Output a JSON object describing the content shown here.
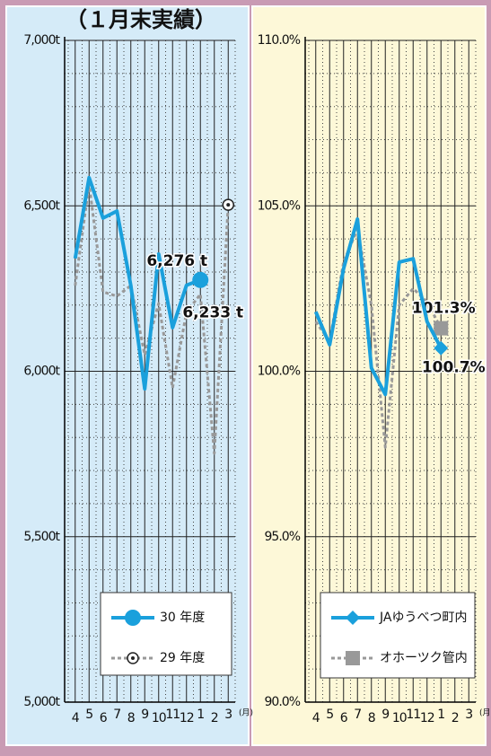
{
  "chart_data": [
    {
      "type": "line",
      "title": "（１月末実績）",
      "categories": [
        "4",
        "5",
        "6",
        "7",
        "8",
        "9",
        "10",
        "11",
        "12",
        "1",
        "2",
        "3"
      ],
      "x_unit": "(月)",
      "series": [
        {
          "name": "30 年度",
          "color": "#1aa0dc",
          "line": "solid",
          "marker": "circle",
          "values": [
            6341,
            6585,
            6463,
            6484,
            6259,
            5947,
            6354,
            6132,
            6260,
            6276,
            null,
            null
          ],
          "value_labels": [
            null,
            null,
            null,
            null,
            null,
            null,
            null,
            null,
            null,
            "6,276 t",
            null,
            null
          ]
        },
        {
          "name": "29 年度",
          "color": "#999999",
          "line": "dotted",
          "marker": "target",
          "values": [
            6259,
            6566,
            6240,
            6227,
            6259,
            6050,
            6205,
            5950,
            6178,
            6233,
            5752,
            6503
          ],
          "value_labels": [
            null,
            null,
            null,
            null,
            null,
            null,
            null,
            null,
            null,
            "6,233 t",
            null,
            null
          ]
        }
      ],
      "ylim": [
        5000,
        7000
      ],
      "yticks": [
        {
          "value": 5000,
          "label": "5,000t"
        },
        {
          "value": 5500,
          "label": "5,500t"
        },
        {
          "value": 6000,
          "label": "6,000t"
        },
        {
          "value": 6500,
          "label": "6,500t"
        },
        {
          "value": 7000,
          "label": "7,000t"
        }
      ],
      "grid": true,
      "legend": "lower right"
    },
    {
      "type": "line",
      "categories": [
        "4",
        "5",
        "6",
        "7",
        "8",
        "9",
        "10",
        "11",
        "12",
        "1",
        "2",
        "3"
      ],
      "x_unit": "(月)",
      "series": [
        {
          "name": "JAゆうべつ町内",
          "color": "#1aa0dc",
          "line": "solid",
          "marker": "diamond",
          "values": [
            101.8,
            100.8,
            103.1,
            104.6,
            100.1,
            99.3,
            103.3,
            103.4,
            101.5,
            100.7,
            null,
            null
          ],
          "value_labels": [
            null,
            null,
            null,
            null,
            null,
            null,
            null,
            null,
            null,
            "100.7%",
            null,
            null
          ]
        },
        {
          "name": "オホーツク管内",
          "color": "#999999",
          "line": "dotted",
          "marker": "square",
          "values": [
            101.5,
            100.9,
            103.3,
            104.3,
            102.0,
            97.7,
            102.0,
            102.5,
            102.1,
            101.3,
            null,
            null
          ],
          "value_labels": [
            null,
            null,
            null,
            null,
            null,
            null,
            null,
            null,
            null,
            "101.3%",
            null,
            null
          ]
        }
      ],
      "ylim": [
        90,
        110
      ],
      "yticks": [
        {
          "value": 90,
          "label": "90.0%"
        },
        {
          "value": 95,
          "label": "95.0%"
        },
        {
          "value": 100,
          "label": "100.0%"
        },
        {
          "value": 105,
          "label": "105.0%"
        },
        {
          "value": 110,
          "label": "110.0%"
        }
      ],
      "grid": true,
      "legend": "lower right"
    }
  ]
}
